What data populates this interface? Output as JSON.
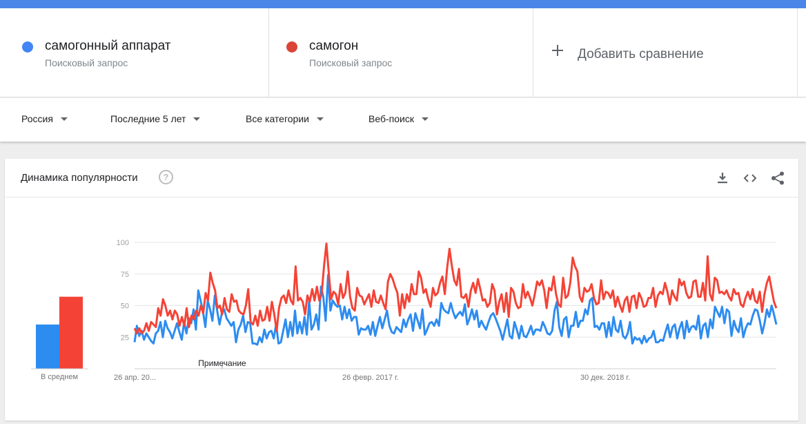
{
  "terms": [
    {
      "name": "самогонный аппарат",
      "sub": "Поисковый запрос",
      "color": "#4285f4"
    },
    {
      "name": "самогон",
      "sub": "Поисковый запрос",
      "color": "#db4437"
    }
  ],
  "add_compare": "Добавить сравнение",
  "filters": {
    "region": "Россия",
    "period": "Последние 5 лет",
    "category": "Все категории",
    "search_type": "Веб-поиск"
  },
  "panel": {
    "title": "Динамика популярности",
    "help_glyph": "?",
    "average_label": "В среднем",
    "note_label": "Примечание"
  },
  "icons": [
    "download-icon",
    "embed-icon",
    "share-icon",
    "help-icon",
    "plus-icon"
  ],
  "chart_data": {
    "type": "line",
    "y_ticks": [
      25,
      50,
      75,
      100
    ],
    "ylim": [
      0,
      100
    ],
    "x_tick_labels": [
      "26 апр. 20...",
      "26 февр. 2017 г.",
      "30 дек. 2018 г."
    ],
    "grid": true,
    "averages": [
      {
        "name": "самогонный аппарат",
        "value": 35,
        "color": "#2d8cf0"
      },
      {
        "name": "самогон",
        "value": 57,
        "color": "#f44336"
      }
    ],
    "series": [
      {
        "name": "самогонный аппарат",
        "color": "#2d8cf0",
        "values": [
          21,
          34,
          26,
          30,
          23,
          28,
          25,
          22,
          20,
          28,
          30,
          37,
          25,
          38,
          32,
          29,
          24,
          30,
          36,
          29,
          23,
          37,
          28,
          40,
          36,
          47,
          31,
          62,
          54,
          45,
          33,
          54,
          47,
          38,
          58,
          46,
          35,
          44,
          47,
          40,
          37,
          34,
          37,
          21,
          31,
          35,
          42,
          29,
          37,
          36,
          20,
          20,
          19,
          25,
          21,
          31,
          24,
          29,
          30,
          24,
          35,
          20,
          21,
          30,
          39,
          25,
          37,
          26,
          46,
          28,
          37,
          28,
          41,
          27,
          54,
          31,
          35,
          43,
          31,
          65,
          57,
          38,
          74,
          46,
          54,
          51,
          49,
          50,
          39,
          49,
          40,
          47,
          38,
          41,
          41,
          27,
          32,
          31,
          31,
          34,
          27,
          37,
          26,
          34,
          41,
          32,
          39,
          46,
          34,
          29,
          28,
          33,
          31,
          29,
          39,
          33,
          39,
          43,
          30,
          44,
          38,
          32,
          47,
          27,
          31,
          36,
          37,
          34,
          39,
          34,
          52,
          47,
          45,
          44,
          52,
          45,
          40,
          43,
          45,
          42,
          51,
          35,
          40,
          47,
          39,
          46,
          33,
          38,
          34,
          31,
          37,
          42,
          44,
          40,
          35,
          30,
          23,
          31,
          39,
          26,
          24,
          37,
          31,
          24,
          34,
          26,
          25,
          29,
          34,
          27,
          31,
          31,
          30,
          37,
          33,
          28,
          27,
          30,
          46,
          53,
          33,
          26,
          39,
          41,
          25,
          34,
          34,
          45,
          33,
          38,
          38,
          47,
          43,
          54,
          56,
          33,
          34,
          31,
          36,
          36,
          25,
          37,
          26,
          41,
          31,
          29,
          38,
          26,
          24,
          28,
          37,
          20,
          25,
          23,
          24,
          20,
          26,
          21,
          24,
          25,
          30,
          21,
          21,
          23,
          22,
          29,
          35,
          25,
          33,
          35,
          24,
          32,
          37,
          24,
          38,
          29,
          33,
          34,
          31,
          42,
          24,
          34,
          36,
          25,
          39,
          32,
          49,
          45,
          41,
          49,
          36,
          47,
          45,
          26,
          38,
          32,
          29,
          40,
          25,
          32,
          36,
          35,
          42,
          47,
          46,
          38,
          28,
          36,
          47,
          41,
          50,
          43,
          35
        ]
      },
      {
        "name": "самогон",
        "color": "#f44336",
        "values": [
          32,
          28,
          32,
          28,
          30,
          36,
          30,
          37,
          35,
          33,
          48,
          42,
          55,
          50,
          42,
          46,
          39,
          46,
          43,
          34,
          41,
          34,
          48,
          33,
          42,
          39,
          46,
          42,
          50,
          44,
          60,
          54,
          76,
          68,
          62,
          48,
          50,
          43,
          56,
          47,
          45,
          59,
          53,
          54,
          46,
          44,
          43,
          50,
          63,
          37,
          35,
          42,
          34,
          46,
          38,
          39,
          49,
          38,
          53,
          43,
          30,
          48,
          56,
          58,
          52,
          62,
          54,
          51,
          81,
          54,
          56,
          53,
          43,
          58,
          53,
          63,
          54,
          65,
          54,
          59,
          81,
          99,
          76,
          55,
          61,
          59,
          51,
          67,
          56,
          60,
          77,
          57,
          48,
          46,
          64,
          58,
          57,
          51,
          55,
          59,
          49,
          62,
          53,
          52,
          58,
          52,
          47,
          69,
          75,
          71,
          65,
          60,
          42,
          59,
          48,
          59,
          53,
          67,
          59,
          59,
          77,
          72,
          60,
          63,
          55,
          49,
          64,
          58,
          60,
          68,
          73,
          59,
          80,
          95,
          81,
          70,
          66,
          79,
          57,
          56,
          59,
          49,
          62,
          68,
          60,
          71,
          63,
          54,
          55,
          49,
          52,
          67,
          62,
          43,
          53,
          59,
          45,
          60,
          41,
          64,
          61,
          52,
          48,
          49,
          67,
          56,
          61,
          56,
          50,
          59,
          69,
          66,
          70,
          62,
          48,
          64,
          62,
          73,
          59,
          51,
          49,
          72,
          56,
          58,
          68,
          88,
          81,
          77,
          57,
          53,
          64,
          61,
          62,
          67,
          56,
          51,
          52,
          70,
          55,
          61,
          60,
          56,
          62,
          49,
          57,
          50,
          45,
          54,
          57,
          45,
          57,
          58,
          48,
          60,
          56,
          49,
          50,
          56,
          56,
          64,
          49,
          58,
          61,
          59,
          68,
          61,
          51,
          62,
          57,
          54,
          71,
          66,
          69,
          60,
          56,
          57,
          69,
          70,
          57,
          57,
          68,
          54,
          89,
          59,
          54,
          72,
          70,
          60,
          61,
          59,
          62,
          57,
          54,
          63,
          59,
          60,
          51,
          49,
          56,
          61,
          55,
          63,
          54,
          52,
          61,
          45,
          59,
          68,
          73,
          63,
          53,
          48
        ]
      }
    ]
  }
}
